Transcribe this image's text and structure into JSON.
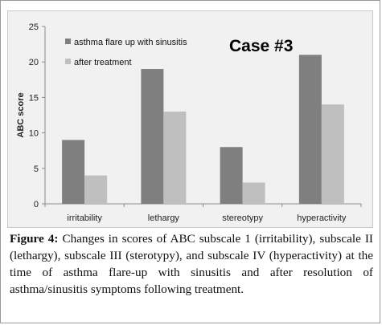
{
  "chart_data": {
    "type": "bar",
    "annotation": "Case #3",
    "ylabel": "ABC score",
    "ylim": [
      0,
      25
    ],
    "yticks": [
      0,
      5,
      10,
      15,
      20,
      25
    ],
    "categories": [
      "irritability",
      "lethargy",
      "stereotypy",
      "hyperactivity"
    ],
    "series": [
      {
        "name": "asthma flare up with sinusitis",
        "color": "#7f7f80",
        "values": [
          9,
          19,
          8,
          21
        ]
      },
      {
        "name": "after treatment",
        "color": "#bfbfbf",
        "values": [
          4,
          13,
          3,
          14
        ]
      }
    ],
    "legend_position": "top-left",
    "grid": false
  },
  "caption": {
    "label": "Figure 4:",
    "text": " Changes in scores of ABC subscale 1 (irritability), subscale II (lethargy), subscale III (sterotypy), and subscale IV (hyperactivity) at the time of asthma flare-up with sinusitis and after resolution of asthma/sinusitis symptoms following treatment."
  }
}
